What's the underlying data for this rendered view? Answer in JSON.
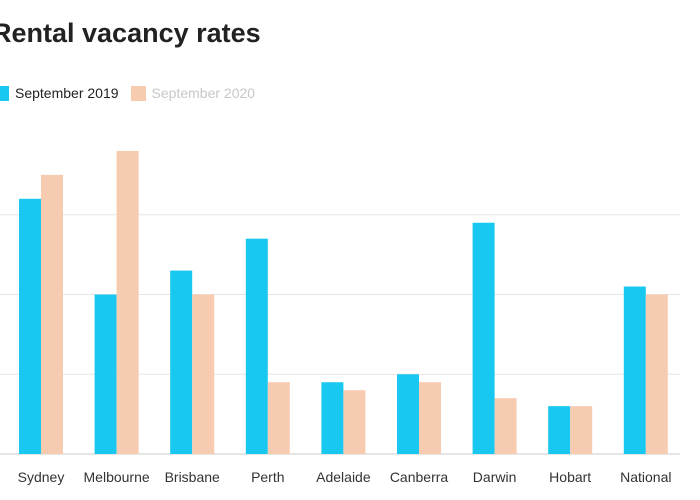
{
  "chart_data": {
    "type": "bar",
    "title": "Rental vacancy rates",
    "title_visible": "Rental vacancy rates",
    "categories": [
      "Sydney",
      "Melbourne",
      "Brisbane",
      "Perth",
      "Adelaide",
      "Canberra",
      "Darwin",
      "Hobart",
      "National"
    ],
    "series": [
      {
        "name": "September 2019",
        "color": "#19c8f0",
        "values": [
          3.2,
          2.0,
          2.3,
          2.7,
          0.9,
          1.0,
          2.9,
          0.6,
          2.1
        ]
      },
      {
        "name": "September 2020",
        "color": "#f7cbaf",
        "values": [
          3.5,
          3.8,
          2.0,
          0.9,
          0.8,
          0.9,
          0.7,
          0.6,
          2.0
        ]
      }
    ],
    "ylim": [
      0,
      4
    ],
    "gridlines": [
      1,
      2,
      3
    ],
    "grid": true,
    "legend_position": "top-left",
    "xlabel": "",
    "ylabel": ""
  }
}
